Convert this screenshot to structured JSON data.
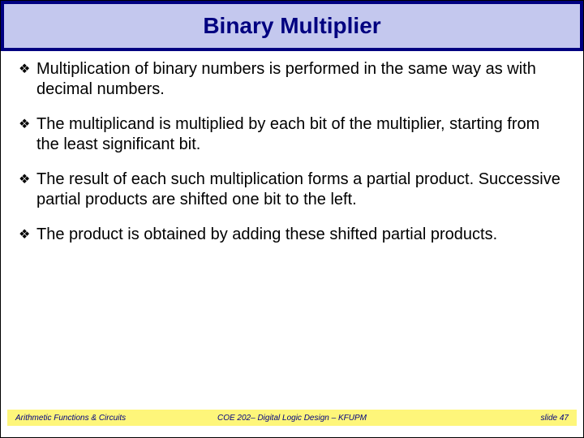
{
  "colors": {
    "title_band_outer": "#000080",
    "title_band_inner": "#c4c8ee",
    "title_text": "#000080",
    "body_text": "#000000",
    "footer_bg": "#fef67a",
    "footer_text": "#000080",
    "page_bg": "#ffffff"
  },
  "typography": {
    "title_font": "Comic Sans MS",
    "title_size_pt": 28,
    "title_weight": "bold",
    "body_font": "Arial",
    "body_size_pt": 20,
    "footer_font": "Comic Sans MS",
    "footer_size_pt": 10,
    "footer_style": "italic"
  },
  "title": "Binary Multiplier",
  "bullets": [
    "Multiplication of binary numbers is performed in the same way as with decimal numbers.",
    "The multiplicand is multiplied by each bit of the multiplier, starting from the least significant bit.",
    "The result of each such multiplication forms a partial product. Successive partial products are shifted one bit to the left.",
    "The product is obtained by adding these shifted partial products."
  ],
  "bullet_marker": "❖",
  "footer": {
    "left": "Arithmetic Functions & Circuits",
    "center": "COE 202– Digital Logic Design – KFUPM",
    "right": "slide 47"
  }
}
